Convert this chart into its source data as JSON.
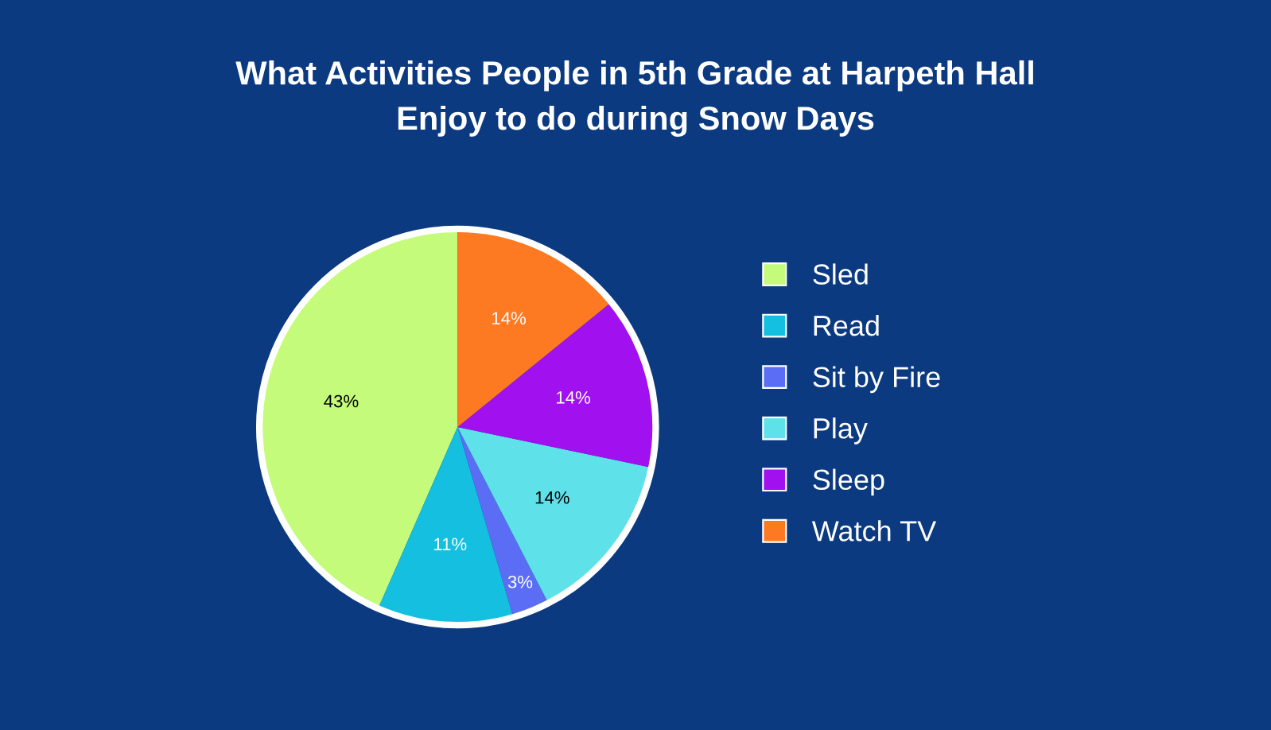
{
  "chart_data": {
    "type": "pie",
    "title": "What Activities People in 5th Grade at Harpeth Hall\nEnjoy to do during Snow Days",
    "categories": [
      "Sled",
      "Read",
      "Sit by Fire",
      "Play",
      "Sleep",
      "Watch TV"
    ],
    "values": [
      43,
      11,
      3,
      14,
      14,
      14
    ],
    "colors": [
      "#c5fb7b",
      "#14bfe0",
      "#5b6df4",
      "#5fe1e9",
      "#a110ef",
      "#fe7a22"
    ],
    "value_labels": [
      "43%",
      "11%",
      "3%",
      "14%",
      "14%",
      "14%"
    ],
    "legend": "right"
  }
}
